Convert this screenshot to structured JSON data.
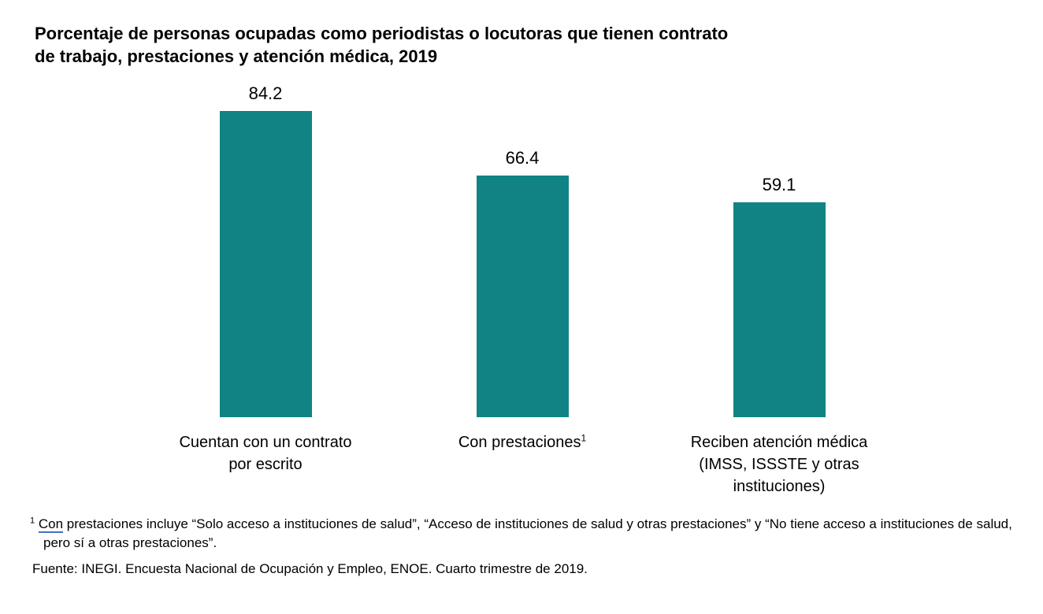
{
  "chart_data": {
    "type": "bar",
    "title": "Porcentaje de personas ocupadas como periodistas o locutoras que tienen contrato\nde trabajo, prestaciones y atención médica, 2019",
    "categories": [
      "Cuentan con un contrato por escrito",
      "Con prestaciones",
      "Reciben atención médica (IMSS, ISSSTE y otras instituciones)"
    ],
    "category_footnote_marks": [
      "",
      "1",
      ""
    ],
    "values": [
      84.2,
      66.4,
      59.1
    ],
    "value_labels": [
      "84.2",
      "66.4",
      "59.1"
    ],
    "xlabel": "",
    "ylabel": "",
    "ylim": [
      0,
      100
    ],
    "grid": false,
    "legend": false,
    "bar_color": "#118384"
  },
  "footnote": {
    "marker": "1",
    "underlined_word": "Con",
    "text_after": " prestaciones incluye “Solo acceso a instituciones de salud”, “Acceso de instituciones de salud y otras prestaciones” y “No tiene acceso a instituciones de salud, pero sí a otras prestaciones”.",
    "underline_color": "#4472c4"
  },
  "source": "Fuente: INEGI. Encuesta Nacional de Ocupación y Empleo, ENOE. Cuarto trimestre de 2019."
}
